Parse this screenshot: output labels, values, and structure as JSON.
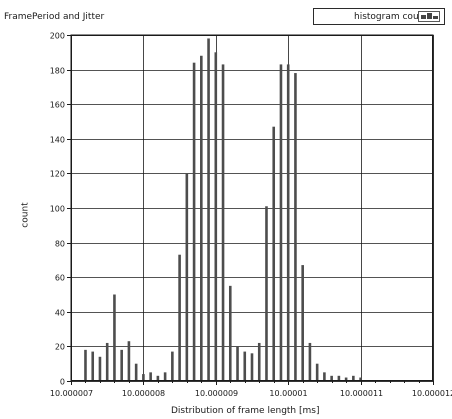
{
  "window_title": "FramePeriod and Jitter",
  "legend": {
    "label": "histogram count",
    "icon": "histogram-bars-icon"
  },
  "colors": {
    "bar": "#4d4d4d",
    "grid": "#1a1a1a",
    "plot_background": "#ffffff"
  },
  "chart_data": {
    "type": "bar",
    "title": "FramePeriod and Jitter",
    "xlabel": "Distribution of frame length [ms]",
    "ylabel": "count",
    "xlim": [
      10.000007,
      10.000012
    ],
    "ylim": [
      0,
      200
    ],
    "x_ticks": [
      "10.000007",
      "10.000008",
      "10.000009",
      "10.00001",
      "10.000011",
      "10.000012"
    ],
    "y_ticks": [
      "0",
      "20",
      "40",
      "60",
      "80",
      "100",
      "120",
      "140",
      "160",
      "180",
      "200"
    ],
    "grid": true,
    "legend_position": "top-right",
    "series": [
      {
        "name": "histogram count",
        "x": [
          10.0000072,
          10.0000073,
          10.0000074,
          10.0000075,
          10.0000076,
          10.0000077,
          10.0000078,
          10.0000079,
          10.000008,
          10.0000081,
          10.0000082,
          10.0000083,
          10.0000084,
          10.0000085,
          10.0000086,
          10.0000087,
          10.0000088,
          10.0000089,
          10.000009,
          10.0000091,
          10.0000092,
          10.0000093,
          10.0000094,
          10.0000095,
          10.0000096,
          10.0000097,
          10.0000098,
          10.0000099,
          10.00001,
          10.0000101,
          10.0000102,
          10.0000103,
          10.0000104,
          10.0000105,
          10.0000106,
          10.0000107,
          10.0000108,
          10.0000109,
          10.000011
        ],
        "values": [
          18,
          17,
          14,
          22,
          50,
          18,
          23,
          10,
          4,
          5,
          3,
          5,
          17,
          73,
          120,
          184,
          188,
          198,
          190,
          183,
          55,
          20,
          17,
          16,
          22,
          101,
          147,
          183,
          183,
          178,
          67,
          22,
          10,
          5,
          3,
          3,
          2,
          3,
          2
        ]
      }
    ]
  }
}
